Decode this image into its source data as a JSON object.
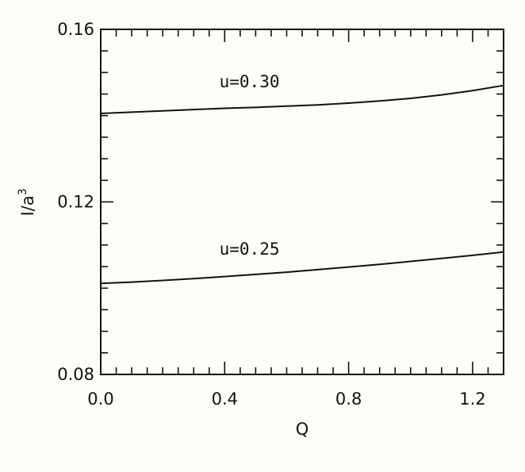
{
  "chart_data": {
    "type": "line",
    "title": "",
    "xlabel": "Q",
    "ylabel": "I/a",
    "ylabel_superscript": "3",
    "xlim": [
      0.0,
      1.3
    ],
    "ylim": [
      0.08,
      0.16
    ],
    "x_ticks": [
      "0.0",
      "0.4",
      "0.8",
      "1.2"
    ],
    "y_ticks": [
      "0.08",
      "0.12",
      "0.16"
    ],
    "grid": false,
    "legend": "none",
    "series": [
      {
        "name": "u=0.30",
        "x": [
          0.0,
          0.1,
          0.2,
          0.3,
          0.4,
          0.5,
          0.6,
          0.7,
          0.8,
          0.9,
          1.0,
          1.1,
          1.2,
          1.3
        ],
        "y": [
          0.1405,
          0.1408,
          0.1411,
          0.1414,
          0.1417,
          0.1419,
          0.1422,
          0.1425,
          0.1429,
          0.1434,
          0.144,
          0.1448,
          0.1458,
          0.147
        ]
      },
      {
        "name": "u=0.25",
        "x": [
          0.0,
          0.1,
          0.2,
          0.3,
          0.4,
          0.5,
          0.6,
          0.7,
          0.8,
          0.9,
          1.0,
          1.1,
          1.2,
          1.3
        ],
        "y": [
          0.1011,
          0.1014,
          0.1018,
          0.1022,
          0.1027,
          0.1032,
          0.1037,
          0.1043,
          0.1049,
          0.1055,
          0.1062,
          0.1069,
          0.1076,
          0.1084
        ]
      }
    ],
    "annotations": [
      {
        "text": "u=0.30",
        "series": 0,
        "at_x": 0.48,
        "dy": 0.0047
      },
      {
        "text": "u=0.25",
        "series": 1,
        "at_x": 0.48,
        "dy": 0.0047
      }
    ]
  }
}
